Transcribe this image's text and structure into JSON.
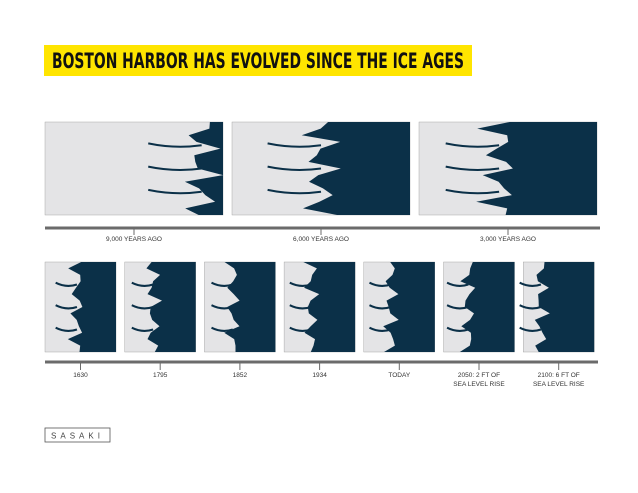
{
  "header": {
    "title": "BOSTON HARBOR HAS EVOLVED SINCE THE ICE AGES"
  },
  "top_timeline": {
    "labels": [
      "9,000 YEARS AGO",
      "6,000 YEARS AGO",
      "3,000 YEARS AGO"
    ]
  },
  "bottom_timeline": {
    "labels": [
      [
        "1630"
      ],
      [
        "1795"
      ],
      [
        "1852"
      ],
      [
        "1934"
      ],
      [
        "TODAY"
      ],
      [
        "2050: 2 FT OF",
        "SEA LEVEL RISE"
      ],
      [
        "2100: 6 FT OF",
        "SEA LEVEL RISE"
      ]
    ]
  },
  "logo": {
    "text": "SASAKI"
  }
}
